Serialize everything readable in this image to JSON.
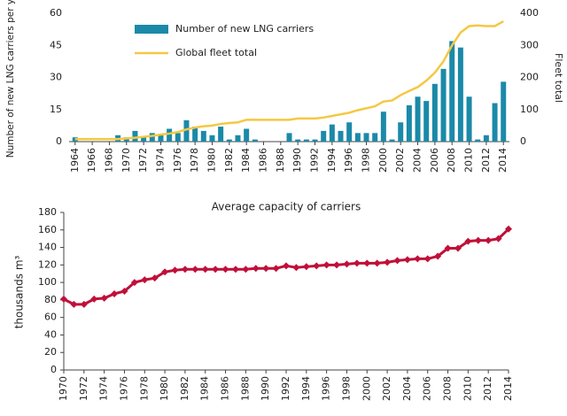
{
  "chart_data": [
    {
      "type": "bar",
      "ylabel": "Number of new LNG carriers per year",
      "y2label": "Fleet total",
      "legend": "upper left",
      "x": [
        1964,
        1965,
        1966,
        1967,
        1968,
        1969,
        1970,
        1971,
        1972,
        1973,
        1974,
        1975,
        1976,
        1977,
        1978,
        1979,
        1980,
        1981,
        1982,
        1983,
        1984,
        1985,
        1986,
        1987,
        1988,
        1989,
        1990,
        1991,
        1992,
        1993,
        1994,
        1995,
        1996,
        1997,
        1998,
        1999,
        2000,
        2001,
        2002,
        2003,
        2004,
        2005,
        2006,
        2007,
        2008,
        2009,
        2010,
        2011,
        2012,
        2013,
        2014
      ],
      "xlim": [
        1963.3,
        2014.7
      ],
      "xticks": [
        1964,
        1966,
        1968,
        1970,
        1972,
        1974,
        1976,
        1978,
        1980,
        1982,
        1984,
        1986,
        1988,
        1990,
        1992,
        1994,
        1996,
        1998,
        2000,
        2002,
        2004,
        2006,
        2008,
        2010,
        2012,
        2014
      ],
      "ylim": [
        0,
        60
      ],
      "yticks": [
        0,
        15,
        30,
        45,
        60
      ],
      "y2lim": [
        0,
        400
      ],
      "y2ticks": [
        0,
        100,
        200,
        300,
        400
      ],
      "series": [
        {
          "name": "Number of new LNG carriers",
          "color": "#1a8aa8",
          "values": [
            2,
            0,
            0,
            0,
            0,
            3,
            2,
            5,
            2,
            4,
            3,
            6,
            4,
            10,
            7,
            5,
            3,
            7,
            1,
            3,
            6,
            1,
            0,
            0,
            0,
            4,
            1,
            1,
            1,
            5,
            8,
            5,
            9,
            4,
            4,
            4,
            14,
            1,
            9,
            17,
            21,
            19,
            27,
            34,
            47,
            44,
            21,
            1,
            3,
            18,
            28
          ]
        },
        {
          "name": "Global fleet total",
          "color": "#f5c842",
          "axis": "y2",
          "values": [
            8,
            8,
            8,
            8,
            8,
            8,
            10,
            12,
            15,
            18,
            22,
            25,
            30,
            38,
            44,
            48,
            50,
            55,
            58,
            60,
            68,
            68,
            68,
            68,
            68,
            68,
            72,
            72,
            72,
            75,
            80,
            85,
            90,
            98,
            104,
            110,
            125,
            128,
            145,
            158,
            170,
            190,
            215,
            250,
            300,
            340,
            360,
            362,
            360,
            360,
            375
          ]
        }
      ]
    },
    {
      "type": "line",
      "title": "Average capacity of carriers",
      "ylabel": "thousands m³",
      "x": [
        1970,
        1971,
        1972,
        1973,
        1974,
        1975,
        1976,
        1977,
        1978,
        1979,
        1980,
        1981,
        1982,
        1983,
        1984,
        1985,
        1986,
        1987,
        1988,
        1989,
        1990,
        1991,
        1992,
        1993,
        1994,
        1995,
        1996,
        1997,
        1998,
        1999,
        2000,
        2001,
        2002,
        2003,
        2004,
        2005,
        2006,
        2007,
        2008,
        2009,
        2010,
        2011,
        2012,
        2013,
        2014
      ],
      "xlim": [
        1970,
        2014
      ],
      "xticks": [
        1970,
        1972,
        1974,
        1976,
        1978,
        1980,
        1982,
        1984,
        1986,
        1988,
        1990,
        1992,
        1994,
        1996,
        1998,
        2000,
        2002,
        2004,
        2006,
        2008,
        2010,
        2012,
        2014
      ],
      "ylim": [
        0,
        180
      ],
      "yticks": [
        0,
        20,
        40,
        60,
        80,
        100,
        120,
        140,
        160,
        180
      ],
      "color": "#c0103a",
      "marker": "diamond",
      "values": [
        81,
        75,
        75,
        81,
        82,
        87,
        90,
        100,
        103,
        105,
        112,
        114,
        115,
        115,
        115,
        115,
        115,
        115,
        115,
        116,
        116,
        116,
        119,
        117,
        118,
        119,
        120,
        120,
        121,
        122,
        122,
        122,
        123,
        125,
        126,
        127,
        127,
        130,
        139,
        139,
        147,
        148,
        148,
        150,
        161
      ]
    }
  ]
}
